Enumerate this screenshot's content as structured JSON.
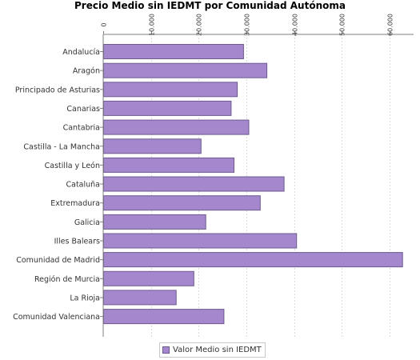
{
  "chart_data": {
    "type": "bar",
    "orientation": "horizontal",
    "title": "Precio Medio sin IEDMT por Comunidad Autónoma",
    "categories": [
      "Andalucía",
      "Aragón",
      "Principado de Asturias",
      "Canarias",
      "Cantabria",
      "Castilla - La Mancha",
      "Castilla y León",
      "Cataluña",
      "Extremadura",
      "Galicia",
      "Illes Balears",
      "Comunidad de Madrid",
      "Región de Murcia",
      "La Rioja",
      "Comunidad Valenciana"
    ],
    "series": [
      {
        "name": "Valor Medio sin IEDMT",
        "values": [
          29300,
          34200,
          28000,
          26700,
          30400,
          20400,
          27300,
          37800,
          32800,
          21400,
          40400,
          62600,
          18900,
          15200,
          25200
        ]
      }
    ],
    "xlim": [
      0,
      65000
    ],
    "xticks": [
      "0",
      "10.000",
      "20.000",
      "30.000",
      "40.000",
      "50.000",
      "60.000"
    ],
    "xtick_values": [
      0,
      10000,
      20000,
      30000,
      40000,
      50000,
      60000
    ],
    "x_axis_position": "top",
    "grid": true,
    "legend": "bottom",
    "colors": {
      "bar_fill": "#a487cc",
      "bar_stroke": "#6d5a8f",
      "grid": "#d9d9d9",
      "axis": "#7f7f7f"
    }
  }
}
